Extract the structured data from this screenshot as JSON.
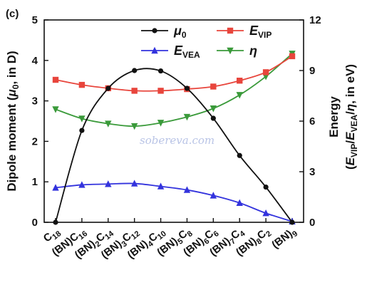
{
  "chart_data": {
    "type": "line",
    "panel_label": "(c)",
    "watermark": "sobereva.com",
    "categories": [
      {
        "base": "C",
        "sub": "18"
      },
      {
        "base": "(BN)C",
        "sub": "16"
      },
      {
        "base": "(BN)",
        "sub": "2",
        "base2": "C",
        "sub2": "14"
      },
      {
        "base": "(BN)",
        "sub": "3",
        "base2": "C",
        "sub2": "12"
      },
      {
        "base": "(BN)",
        "sub": "4",
        "base2": "C",
        "sub2": "10"
      },
      {
        "base": "(BN)",
        "sub": "5",
        "base2": "C",
        "sub2": "8"
      },
      {
        "base": "(BN)",
        "sub": "6",
        "base2": "C",
        "sub2": "6"
      },
      {
        "base": "(BN)",
        "sub": "7",
        "base2": "C",
        "sub2": "4"
      },
      {
        "base": "(BN)",
        "sub": "8",
        "base2": "C",
        "sub2": "2"
      },
      {
        "base": "(BN)",
        "sub": "9"
      }
    ],
    "left_axis": {
      "label_main": "Dipole moment (",
      "label_sym": "μ",
      "label_sub": "0",
      "label_end": ", in D)",
      "ylim": [
        0,
        5
      ],
      "ticks": [
        0,
        1,
        2,
        3,
        4,
        5
      ]
    },
    "right_axis": {
      "label_line1": "Energy",
      "label_line2_open": "(",
      "label_E": "E",
      "label_VIP": "VIP",
      "label_slash": "/",
      "label_VEA": "VEA",
      "label_eta": "η",
      "label_line2_close": ", in eV)",
      "ylim": [
        0,
        12
      ],
      "ticks": [
        0,
        3,
        6,
        9,
        12
      ]
    },
    "series": [
      {
        "name_sym": "μ",
        "name_sub": "0",
        "axis": "left",
        "color": "#111111",
        "marker": "circle",
        "values": [
          0.0,
          2.27,
          3.31,
          3.75,
          3.74,
          3.31,
          2.57,
          1.65,
          0.87,
          0.0
        ]
      },
      {
        "name_sym": "E",
        "name_sub": "VIP",
        "axis": "right",
        "color": "#e8453c",
        "marker": "square",
        "values": [
          8.45,
          8.15,
          7.95,
          7.8,
          7.8,
          7.9,
          8.05,
          8.4,
          8.9,
          9.85
        ]
      },
      {
        "name_sym": "E",
        "name_sub": "VEA",
        "axis": "right",
        "color": "#3333dd",
        "marker": "triangle-up",
        "values": [
          2.05,
          2.22,
          2.27,
          2.3,
          2.13,
          1.92,
          1.59,
          1.15,
          0.54,
          0.05
        ]
      },
      {
        "name_sym": "η",
        "name_sub": "",
        "axis": "right",
        "color": "#3a9a3a",
        "marker": "triangle-down",
        "values": [
          6.7,
          6.15,
          5.85,
          5.7,
          5.9,
          6.25,
          6.75,
          7.55,
          8.65,
          10.0
        ]
      }
    ],
    "legend_placement": "top-center",
    "grid": false
  }
}
